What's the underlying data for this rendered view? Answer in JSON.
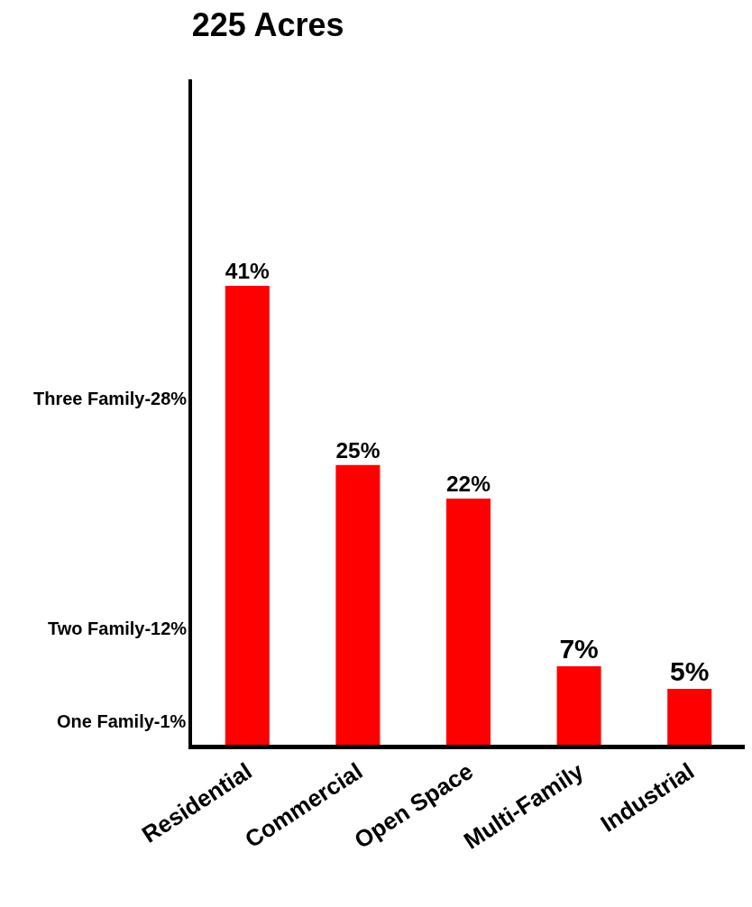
{
  "chart_data": {
    "type": "bar",
    "title": "225 Acres",
    "categories": [
      "Residential",
      "Commercial",
      "Open Space",
      "Multi-Family",
      "Industrial"
    ],
    "values": [
      41,
      25,
      22,
      7,
      5
    ],
    "color": "#ff0000",
    "value_labels": [
      "41%",
      "25%",
      "22%",
      "7%",
      "5%"
    ],
    "annotations": [
      "One Family-1%",
      "Two Family-12%",
      "Three Family-28%"
    ],
    "tick_labels": "x",
    "grid": false,
    "legend": false
  }
}
